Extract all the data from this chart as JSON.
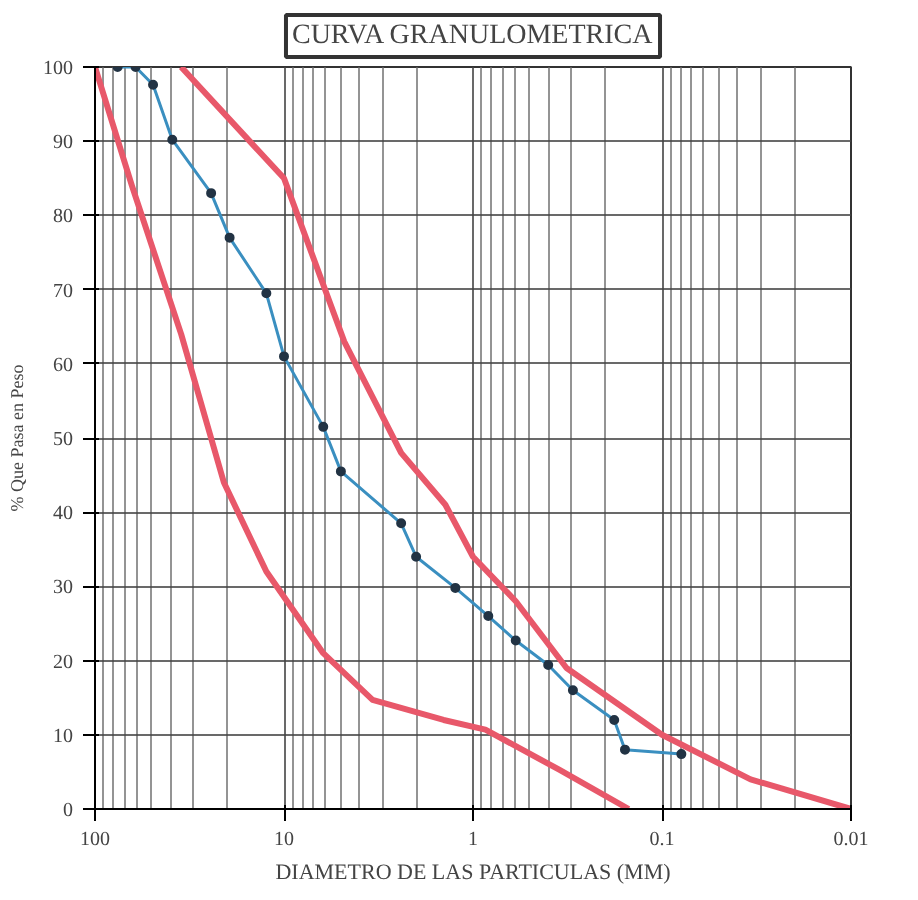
{
  "chart_data": {
    "type": "line",
    "title": "CURVA GRANULOMETRICA",
    "xlabel": "DIAMETRO DE LAS PARTICULAS (MM)",
    "ylabel": "% Que Pasa en Peso",
    "log": "x",
    "xlim": [
      100,
      0.01
    ],
    "xticks": [
      {
        "value": 100,
        "label": "100"
      },
      {
        "value": 10,
        "label": "10"
      },
      {
        "value": 1,
        "label": "1"
      },
      {
        "value": 0.1,
        "label": "0.1"
      },
      {
        "value": 0.01,
        "label": "0.01"
      }
    ],
    "ylim": [
      0,
      100
    ],
    "yticks": [
      0,
      10,
      20,
      30,
      40,
      50,
      60,
      70,
      80,
      90,
      100
    ],
    "grid": true,
    "series": [
      {
        "color": "#e8586a",
        "marker": "none",
        "x": [
          35,
          10,
          4.8,
          2.4,
          1.4,
          1,
          0.594,
          0.32,
          0.1,
          0.034,
          0.01
        ],
        "values": [
          100,
          85,
          63,
          48,
          41,
          34,
          28,
          19,
          10,
          4,
          0
        ]
      },
      {
        "color": "#e8586a",
        "marker": "none",
        "x": [
          100,
          63.8,
          35,
          20.8,
          12.4,
          6.2,
          3.4,
          1.43,
          0.86,
          0.35,
          0.15
        ],
        "values": [
          100,
          84,
          64,
          44,
          32,
          21,
          14.7,
          12,
          10.7,
          5.3,
          0
        ]
      },
      {
        "color": "#3a8fc0",
        "marker": "circle",
        "x": [
          75.9,
          61,
          49.3,
          39,
          24.3,
          19.4,
          12.4,
          10,
          6.2,
          5.0,
          2.4,
          2.0,
          1.24,
          0.83,
          0.594,
          0.4,
          0.296,
          0.179,
          0.157,
          0.079
        ],
        "values": [
          100,
          100,
          97.6,
          90.2,
          83,
          77,
          69.5,
          61,
          51.5,
          45.5,
          38.5,
          34,
          29.8,
          26,
          22.7,
          19.4,
          16,
          12,
          8,
          7.4
        ]
      }
    ]
  }
}
